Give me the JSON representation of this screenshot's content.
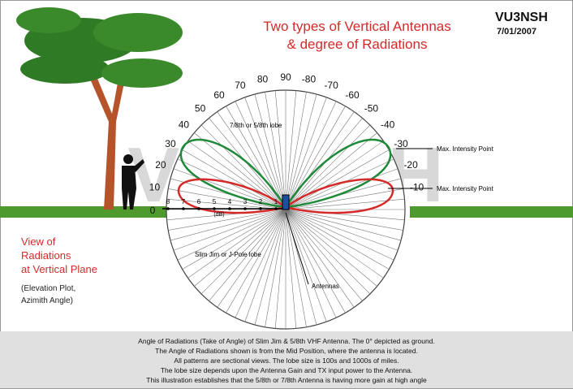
{
  "header": {
    "title_line1": "Two types of Vertical Antennas",
    "title_line2": "& degree of Radiations",
    "callsign": "VU3NSH",
    "date": "7/01/2007"
  },
  "watermark": "VU3NSH",
  "angle_labels": [
    "0",
    "10",
    "20",
    "30",
    "40",
    "50",
    "60",
    "70",
    "80",
    "90",
    "-80",
    "-70",
    "-60",
    "-50",
    "-40",
    "-30",
    "-20",
    "-10"
  ],
  "db_labels": [
    "8",
    "7",
    "6",
    "5",
    "4",
    "3",
    "2",
    "1"
  ],
  "db_unit": "(dB)",
  "annotations": {
    "upper_lobe": "7/8th or 5/8th lobe",
    "max_upper": "Max. Intensity Point",
    "max_lower": "Max. Intensity Point",
    "lower_lobe": "Slim Jim or J-Pole lobe",
    "antennas": "Antennas"
  },
  "side": {
    "heading_lines": [
      "View of",
      "Radiations",
      "at Vertical Plane"
    ],
    "note_lines": [
      "(Elevation Plot,",
      "Azimith Angle)"
    ]
  },
  "footer": [
    "Angle of Radiations (Take of Angle) of Slim Jim & 5/8th VHF Antenna. The 0° depicted as ground.",
    "The Angle of Radiations shown is from the Mid Position, where the antenna is located.",
    "All patterns are sectional views. The lobe size is 100s and 1000s of miles.",
    "The lobe size depends upon the Antenna Gain and TX input power to the Antenna.",
    "This illustration establishes that the 5/8th or 7/8th Antenna is having more gain at high angle"
  ]
}
